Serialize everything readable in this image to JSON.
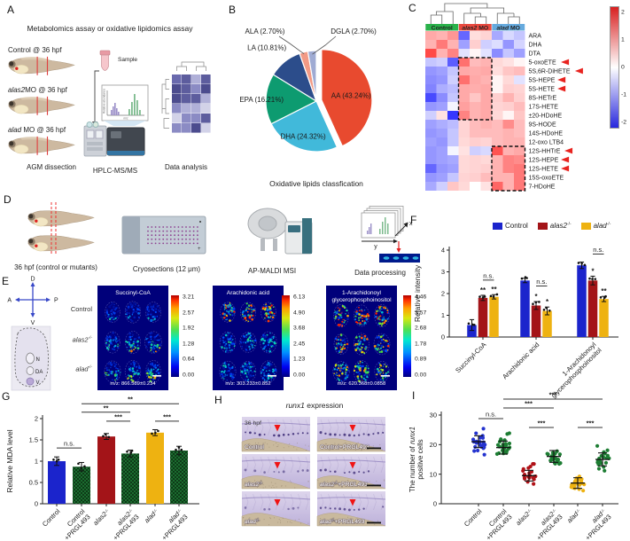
{
  "panels_labels": {
    "A": "A",
    "B": "B",
    "C": "C",
    "D": "D",
    "E": "E",
    "F": "F",
    "G": "G",
    "H": "H",
    "I": "I"
  },
  "panelA": {
    "title": "Metabolomics assay or oxidative lipidomics assay",
    "fish_labels": [
      [
        {
          "t": "Control @ 36 hpf"
        }
      ],
      [
        {
          "t": "alas2",
          "i": 1
        },
        {
          "t": "MO @ 36 hpf"
        }
      ],
      [
        {
          "t": "alad",
          "i": 1
        },
        {
          "t": " MO @ 36 hpf"
        }
      ]
    ],
    "sample_label": "Sample",
    "spectrum": {
      "ylabel": "Relative abundance",
      "xlabel": "m/z"
    },
    "steps": [
      "AGM dissection",
      "HPLC-MS/MS",
      "Data analysis"
    ]
  },
  "panelD": {
    "steps": [
      "36 hpf (control or mutants)",
      "Cryosections (12 μm)",
      "AP-MALDI MSI",
      "Data processing"
    ],
    "axes": {
      "x": "x",
      "y": "y"
    }
  },
  "panelE": {
    "compass": {
      "up": "D",
      "down": "V",
      "left": "A",
      "right": "P"
    },
    "section_labels": [
      "N",
      "DA",
      "V"
    ],
    "row_labels": [
      [
        {
          "t": "Control"
        }
      ],
      [
        {
          "t": "alas2",
          "i": 1
        },
        {
          "t": "-/-",
          "s": 1
        }
      ],
      [
        {
          "t": "alad",
          "i": 1
        },
        {
          "t": "-/-",
          "s": 1
        }
      ]
    ],
    "msi": [
      {
        "title_lines": [
          "Succinyl-CoA"
        ],
        "mz": "m/z: 866.589±0.234",
        "scale": [
          "3.21",
          "2.57",
          "1.92",
          "1.28",
          "0.64",
          "0.00"
        ],
        "row_intensity": [
          0.35,
          0.62,
          0.72
        ],
        "bias": "bottom"
      },
      {
        "title_lines": [
          "Arachidonic acid"
        ],
        "mz": "m/z: 303.233±0.852",
        "scale": [
          "6.13",
          "4.90",
          "3.68",
          "2.45",
          "1.23",
          "0.00"
        ],
        "row_intensity": [
          0.65,
          0.3,
          0.27
        ],
        "bias": "none"
      },
      {
        "title_lines": [
          "1-Arachidonoyl",
          "glycerophosphoinositol"
        ],
        "mz": "m/z: 620.368±0.0858",
        "scale": [
          "4.46",
          "3.57",
          "2.68",
          "1.78",
          "0.89",
          "0.00"
        ],
        "row_intensity": [
          0.8,
          0.58,
          0.52
        ],
        "bias": "none"
      }
    ]
  },
  "panelH": {
    "title": [
      {
        "t": "runx1",
        "i": 1
      },
      {
        "t": " expression"
      }
    ],
    "stage_label": "36 hpf",
    "cells": [
      [
        {
          "t": "Control"
        }
      ],
      [
        {
          "t": "Control+PRGL493"
        }
      ],
      [
        {
          "t": "alas2",
          "i": 1
        },
        {
          "t": "-/-",
          "s": 1
        }
      ],
      [
        {
          "t": "alas2",
          "i": 1
        },
        {
          "t": "-/-",
          "s": 1
        },
        {
          "t": "+PRGL493"
        }
      ],
      [
        {
          "t": "alad",
          "i": 1
        },
        {
          "t": "-/-",
          "s": 1
        }
      ],
      [
        {
          "t": "alad",
          "i": 1
        },
        {
          "t": "-/-",
          "s": 1
        },
        {
          "t": "+PRGL493"
        }
      ]
    ],
    "staining_intensity": [
      0.95,
      0.85,
      0.35,
      0.7,
      0.3,
      0.65
    ]
  },
  "chart_data": [
    {
      "id": "oxidative-lipids-pie",
      "type": "pie",
      "title": "Oxidative lipids classfication",
      "labels": [
        "AA (43.24%)",
        "DHA (24.32%)",
        "EPA (16.21%)",
        "LA (10.81%)",
        "ALA (2.70%)",
        "DGLA (2.70%)"
      ],
      "values": [
        43.24,
        24.32,
        16.21,
        10.81,
        2.7,
        2.7
      ],
      "colors": [
        "#e84a2f",
        "#41b9da",
        "#0d9b70",
        "#2c4d8b",
        "#f29a85",
        "#9fabd3"
      ],
      "explode": [
        1,
        0,
        0,
        0,
        0,
        0
      ]
    },
    {
      "id": "lipid-heatmap",
      "type": "heatmap",
      "col_groups": [
        {
          "label": [
            {
              "t": "Control"
            }
          ],
          "color": "#2ab24b",
          "cols": 3
        },
        {
          "label": [
            {
              "t": "alas2",
              "i": 1
            },
            {
              "t": " MO"
            }
          ],
          "color": "#e9493f",
          "cols": 3
        },
        {
          "label": [
            {
              "t": "alad",
              "i": 1
            },
            {
              "t": " MO"
            }
          ],
          "color": "#66aade",
          "cols": 3
        }
      ],
      "rows": [
        "ARA",
        "DHA",
        "DTA",
        "5-oxoETE",
        "5S,6R-DiHETE",
        "5S-HEPE",
        "5S-HETE",
        "8S-HETrE",
        "17S-HETE",
        "±20-HDoHE",
        "9S-HODE",
        "14S-HDoHE",
        "12-oxo LTB4",
        "12S-HHTrE",
        "12S-HEPE",
        "12S-HETE",
        "15S-oxoETE",
        "7-HDoHE"
      ],
      "arrow_rows": [
        3,
        4,
        5,
        6,
        13,
        14,
        15
      ],
      "values": [
        [
          0.9,
          0.8,
          1.1,
          -1.6,
          0.35,
          0.45,
          -0.9,
          -0.4,
          -0.6
        ],
        [
          0.8,
          1.4,
          0.8,
          -1.0,
          0.5,
          -0.5,
          -0.35,
          -1.1,
          -0.45
        ],
        [
          1.9,
          0.8,
          1.3,
          -0.3,
          0.1,
          -0.3,
          -1.2,
          -0.6,
          -1.0
        ],
        [
          -0.6,
          -0.5,
          -1.7,
          1.5,
          0.7,
          0.8,
          0.4,
          0.3,
          0.1
        ],
        [
          -1.1,
          -1.0,
          -0.6,
          0.9,
          0.85,
          0.9,
          0.35,
          0.6,
          0.7
        ],
        [
          -1.2,
          -1.1,
          -0.5,
          1.5,
          0.9,
          0.8,
          0.1,
          0.4,
          -0.3
        ],
        [
          -1.3,
          -0.85,
          -0.7,
          0.9,
          0.85,
          0.9,
          0.1,
          0.5,
          0.45
        ],
        [
          -1.9,
          -1.2,
          -0.6,
          0.9,
          0.6,
          0.9,
          0.5,
          0.8,
          0.5
        ],
        [
          -1.1,
          -1.0,
          -0.1,
          1.0,
          0.8,
          0.9,
          0.45,
          0.5,
          0.7
        ],
        [
          -0.5,
          0.3,
          -2.1,
          1.3,
          0.8,
          0.9,
          0.4,
          0.1,
          0.6
        ],
        [
          -1.0,
          -0.85,
          -0.7,
          0.45,
          0.7,
          0.8,
          0.7,
          1.2,
          0.7
        ],
        [
          -1.1,
          -1.0,
          -0.6,
          0.45,
          0.7,
          0.7,
          0.7,
          0.8,
          0.7
        ],
        [
          -1.0,
          -1.1,
          -0.6,
          0.4,
          0.5,
          0.45,
          0.7,
          0.8,
          0.8
        ],
        [
          -1.1,
          -1.0,
          -0.1,
          0.3,
          -0.5,
          -0.4,
          1.8,
          0.8,
          0.9
        ],
        [
          -1.1,
          -1.0,
          -0.9,
          0.4,
          0.45,
          0.4,
          0.8,
          1.3,
          1.2
        ],
        [
          -1.6,
          -1.1,
          -1.0,
          0.4,
          0.45,
          0.5,
          0.8,
          1.3,
          1.4
        ],
        [
          -1.1,
          -1.0,
          -0.6,
          0.45,
          0.5,
          0.7,
          0.8,
          0.8,
          1.4
        ],
        [
          -0.9,
          -0.5,
          0.6,
          0.4,
          0.0,
          0.3,
          1.6,
          0.8,
          1.4
        ]
      ],
      "vmax": 2.2,
      "colorbar_ticks": [
        "2",
        "1",
        "0",
        "-1",
        "-2"
      ],
      "dashed_boxes": [
        {
          "c0": 3,
          "c1": 6,
          "r0": 3,
          "r1": 10
        },
        {
          "c0": 6,
          "c1": 9,
          "r0": 13,
          "r1": 18
        }
      ]
    },
    {
      "id": "relative-intensity-bars",
      "type": "bar",
      "ylabel": "Relative intensity",
      "ylim": [
        0,
        4
      ],
      "yticks": [
        "0",
        "1",
        "2",
        "3",
        "4"
      ],
      "categories": [
        [
          {
            "t": "Succinyl-CoA"
          }
        ],
        [
          {
            "t": "Arachidonic acid"
          }
        ],
        [
          {
            "t": "1-Arachidonoyl"
          },
          {
            "br": 1
          },
          {
            "t": "glycerophosphoinositol"
          }
        ]
      ],
      "series": [
        {
          "name": [
            {
              "t": "Control"
            }
          ],
          "color": "#1b24cc",
          "values": [
            0.55,
            2.6,
            3.3
          ],
          "err": [
            0.25,
            0.1,
            0.15
          ]
        },
        {
          "name": [
            {
              "t": "alas2",
              "i": 1
            },
            {
              "t": "-/-",
              "s": 1
            }
          ],
          "color": "#a31418",
          "values": [
            1.8,
            1.45,
            2.6
          ],
          "err": [
            0.12,
            0.18,
            0.2
          ]
        },
        {
          "name": [
            {
              "t": "alad",
              "i": 1
            },
            {
              "t": "-/-",
              "s": 1
            }
          ],
          "color": "#eeb211",
          "values": [
            1.85,
            1.2,
            1.75
          ],
          "err": [
            0.1,
            0.18,
            0.12
          ]
        }
      ],
      "stars": [
        [
          null,
          "**",
          "**"
        ],
        [
          null,
          "*",
          "*"
        ],
        [
          null,
          "*",
          "**"
        ]
      ],
      "brackets": [
        {
          "g": 0,
          "s1": 1,
          "s2": 2,
          "label": "n.s.",
          "y": 2.62
        },
        {
          "g": 1,
          "s1": 1,
          "s2": 2,
          "label": "n.s.",
          "y": 2.35
        },
        {
          "g": 2,
          "s1": 1,
          "s2": 2,
          "label": "n.s.",
          "y": 3.82
        }
      ]
    },
    {
      "id": "mda-bars",
      "type": "bar",
      "ylabel": "Relative MDA level",
      "ylim": [
        0,
        2
      ],
      "yticks": [
        "0",
        "0.5",
        "1",
        "1.5",
        "2"
      ],
      "categories": [
        [
          {
            "t": "Control"
          }
        ],
        [
          {
            "t": "Control"
          },
          {
            "br": 1
          },
          {
            "t": "+PRGL493"
          }
        ],
        [
          {
            "t": "alas2",
            "i": 1
          },
          {
            "t": "-/-",
            "s": 1
          }
        ],
        [
          {
            "t": "alas2",
            "i": 1
          },
          {
            "t": "-/-",
            "s": 1
          },
          {
            "br": 1
          },
          {
            "t": "+PRGL493"
          }
        ],
        [
          {
            "t": "alad",
            "i": 1
          },
          {
            "t": "-/-",
            "s": 1
          }
        ],
        [
          {
            "t": "alad",
            "i": 1
          },
          {
            "t": "-/-",
            "s": 1
          },
          {
            "br": 1
          },
          {
            "t": "+PRGL493"
          }
        ]
      ],
      "values": [
        1.0,
        0.87,
        1.58,
        1.18,
        1.67,
        1.25
      ],
      "err": [
        0.1,
        0.1,
        0.07,
        0.08,
        0.07,
        0.1
      ],
      "colors": [
        "#1b24cc",
        "hatch",
        "#a31418",
        "hatch",
        "#eeb211",
        "hatch"
      ],
      "brackets": [
        {
          "a": 0,
          "b": 1,
          "label": "n.s.",
          "y": 1.31
        },
        {
          "a": 2,
          "b": 3,
          "label": "***",
          "y": 1.94
        },
        {
          "a": 4,
          "b": 5,
          "label": "***",
          "y": 1.94
        },
        {
          "a": 1,
          "b": 3,
          "label": "**",
          "y": 2.15
        },
        {
          "a": 1,
          "b": 5,
          "label": "**",
          "y": 2.35
        }
      ]
    },
    {
      "id": "runx1-dot-plot",
      "type": "scatter",
      "ylabel_lines": [
        [
          {
            "t": "The number of "
          },
          {
            "t": "runx1",
            "i": 1
          }
        ],
        [
          {
            "t": "positive cells"
          }
        ]
      ],
      "ylim": [
        0,
        30
      ],
      "yticks": [
        "0",
        "10",
        "20",
        "30"
      ],
      "categories": [
        [
          {
            "t": "Control"
          }
        ],
        [
          {
            "t": "Control"
          },
          {
            "br": 1
          },
          {
            "t": "+PRGL493"
          }
        ],
        [
          {
            "t": "alas2",
            "i": 1
          },
          {
            "t": "-/-",
            "s": 1
          }
        ],
        [
          {
            "t": "alas2",
            "i": 1
          },
          {
            "t": "-/-",
            "s": 1
          },
          {
            "br": 1
          },
          {
            "t": "+PRGL493"
          }
        ],
        [
          {
            "t": "alad",
            "i": 1
          },
          {
            "t": "-/-",
            "s": 1
          }
        ],
        [
          {
            "t": "alad",
            "i": 1
          },
          {
            "t": "-/-",
            "s": 1
          },
          {
            "br": 1
          },
          {
            "t": "+PRGL493"
          }
        ]
      ],
      "groups": [
        {
          "mean": 21,
          "sd": 2,
          "n": 24,
          "color": "#2433cf"
        },
        {
          "mean": 19,
          "sd": 2.2,
          "n": 26,
          "color": "#1d7d33"
        },
        {
          "mean": 9.5,
          "sd": 1.8,
          "n": 22,
          "color": "#b01218"
        },
        {
          "mean": 16,
          "sd": 2,
          "n": 22,
          "color": "#1d7d33"
        },
        {
          "mean": 7,
          "sd": 1.8,
          "n": 24,
          "color": "#eeb211"
        },
        {
          "mean": 15,
          "sd": 2.2,
          "n": 20,
          "color": "#1d7d33"
        }
      ],
      "brackets": [
        {
          "a": 0,
          "b": 1,
          "label": "n.s.",
          "y": 28.8
        },
        {
          "a": 2,
          "b": 3,
          "label": "***",
          "y": 25.8
        },
        {
          "a": 4,
          "b": 5,
          "label": "***",
          "y": 25.8
        },
        {
          "a": 1,
          "b": 3,
          "label": "***",
          "y": 32.4
        },
        {
          "a": 1,
          "b": 5,
          "label": "***",
          "y": 35.4
        }
      ]
    }
  ]
}
